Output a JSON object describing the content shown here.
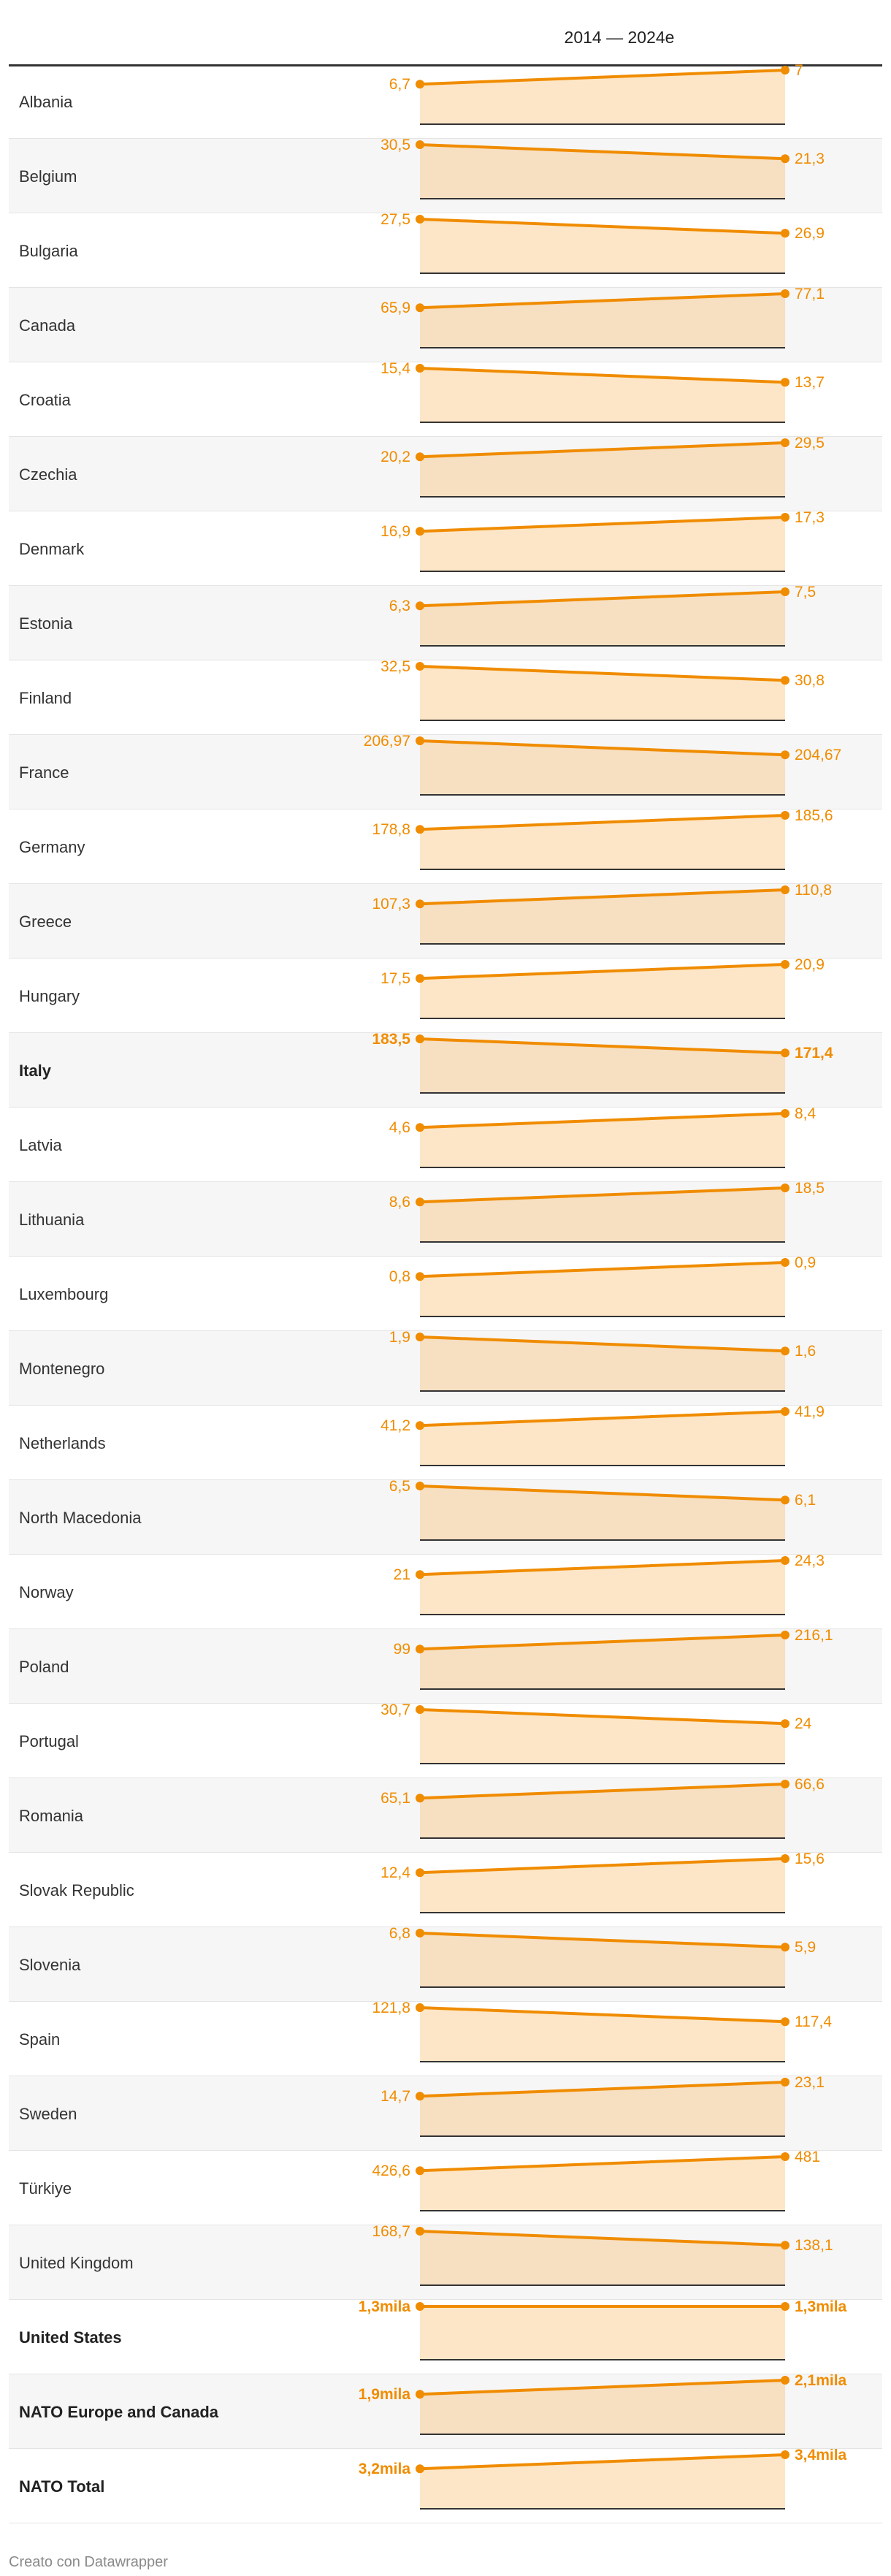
{
  "header": {
    "column_title": "2014 — 2024e"
  },
  "footer": {
    "credit": "Creato con Datawrapper"
  },
  "colors": {
    "accent": "#f08c00",
    "area_fill": "#fde6c7",
    "area_fill_alt": "#f7dfc2",
    "axis": "#333333"
  },
  "chart_data": {
    "type": "area",
    "x": [
      "2014",
      "2024e"
    ],
    "rows": [
      {
        "name": "Albania",
        "values": [
          6.7,
          7
        ],
        "labels": [
          "6,7",
          "7"
        ]
      },
      {
        "name": "Belgium",
        "values": [
          30.5,
          21.3
        ],
        "labels": [
          "30,5",
          "21,3"
        ]
      },
      {
        "name": "Bulgaria",
        "values": [
          27.5,
          26.9
        ],
        "labels": [
          "27,5",
          "26,9"
        ]
      },
      {
        "name": "Canada",
        "values": [
          65.9,
          77.1
        ],
        "labels": [
          "65,9",
          "77,1"
        ]
      },
      {
        "name": "Croatia",
        "values": [
          15.4,
          13.7
        ],
        "labels": [
          "15,4",
          "13,7"
        ]
      },
      {
        "name": "Czechia",
        "values": [
          20.2,
          29.5
        ],
        "labels": [
          "20,2",
          "29,5"
        ]
      },
      {
        "name": "Denmark",
        "values": [
          16.9,
          17.3
        ],
        "labels": [
          "16,9",
          "17,3"
        ]
      },
      {
        "name": "Estonia",
        "values": [
          6.3,
          7.5
        ],
        "labels": [
          "6,3",
          "7,5"
        ]
      },
      {
        "name": "Finland",
        "values": [
          32.5,
          30.8
        ],
        "labels": [
          "32,5",
          "30,8"
        ]
      },
      {
        "name": "France",
        "values": [
          206.97,
          204.67
        ],
        "labels": [
          "206,97",
          "204,67"
        ]
      },
      {
        "name": "Germany",
        "values": [
          178.8,
          185.6
        ],
        "labels": [
          "178,8",
          "185,6"
        ]
      },
      {
        "name": "Greece",
        "values": [
          107.3,
          110.8
        ],
        "labels": [
          "107,3",
          "110,8"
        ]
      },
      {
        "name": "Hungary",
        "values": [
          17.5,
          20.9
        ],
        "labels": [
          "17,5",
          "20,9"
        ]
      },
      {
        "name": "Italy",
        "values": [
          183.5,
          171.4
        ],
        "labels": [
          "183,5",
          "171,4"
        ],
        "bold": true
      },
      {
        "name": "Latvia",
        "values": [
          4.6,
          8.4
        ],
        "labels": [
          "4,6",
          "8,4"
        ]
      },
      {
        "name": "Lithuania",
        "values": [
          8.6,
          18.5
        ],
        "labels": [
          "8,6",
          "18,5"
        ]
      },
      {
        "name": "Luxembourg",
        "values": [
          0.8,
          0.9
        ],
        "labels": [
          "0,8",
          "0,9"
        ]
      },
      {
        "name": "Montenegro",
        "values": [
          1.9,
          1.6
        ],
        "labels": [
          "1,9",
          "1,6"
        ]
      },
      {
        "name": "Netherlands",
        "values": [
          41.2,
          41.9
        ],
        "labels": [
          "41,2",
          "41,9"
        ]
      },
      {
        "name": "North Macedonia",
        "values": [
          6.5,
          6.1
        ],
        "labels": [
          "6,5",
          "6,1"
        ]
      },
      {
        "name": "Norway",
        "values": [
          21,
          24.3
        ],
        "labels": [
          "21",
          "24,3"
        ]
      },
      {
        "name": "Poland",
        "values": [
          99,
          216.1
        ],
        "labels": [
          "99",
          "216,1"
        ]
      },
      {
        "name": "Portugal",
        "values": [
          30.7,
          24
        ],
        "labels": [
          "30,7",
          "24"
        ]
      },
      {
        "name": "Romania",
        "values": [
          65.1,
          66.6
        ],
        "labels": [
          "65,1",
          "66,6"
        ]
      },
      {
        "name": "Slovak Republic",
        "values": [
          12.4,
          15.6
        ],
        "labels": [
          "12,4",
          "15,6"
        ]
      },
      {
        "name": "Slovenia",
        "values": [
          6.8,
          5.9
        ],
        "labels": [
          "6,8",
          "5,9"
        ]
      },
      {
        "name": "Spain",
        "values": [
          121.8,
          117.4
        ],
        "labels": [
          "121,8",
          "117,4"
        ]
      },
      {
        "name": "Sweden",
        "values": [
          14.7,
          23.1
        ],
        "labels": [
          "14,7",
          "23,1"
        ]
      },
      {
        "name": "Türkiye",
        "values": [
          426.6,
          481
        ],
        "labels": [
          "426,6",
          "481"
        ]
      },
      {
        "name": "United Kingdom",
        "values": [
          168.7,
          138.1
        ],
        "labels": [
          "168,7",
          "138,1"
        ]
      },
      {
        "name": "United States",
        "values": [
          1300,
          1300
        ],
        "labels": [
          "1,3mila",
          "1,3mila"
        ],
        "bold": true
      },
      {
        "name": "NATO Europe and Canada",
        "values": [
          1900,
          2100
        ],
        "labels": [
          "1,9mila",
          "2,1mila"
        ],
        "bold": true
      },
      {
        "name": "NATO Total",
        "values": [
          3200,
          3400
        ],
        "labels": [
          "3,2mila",
          "3,4mila"
        ],
        "bold": true
      }
    ]
  }
}
